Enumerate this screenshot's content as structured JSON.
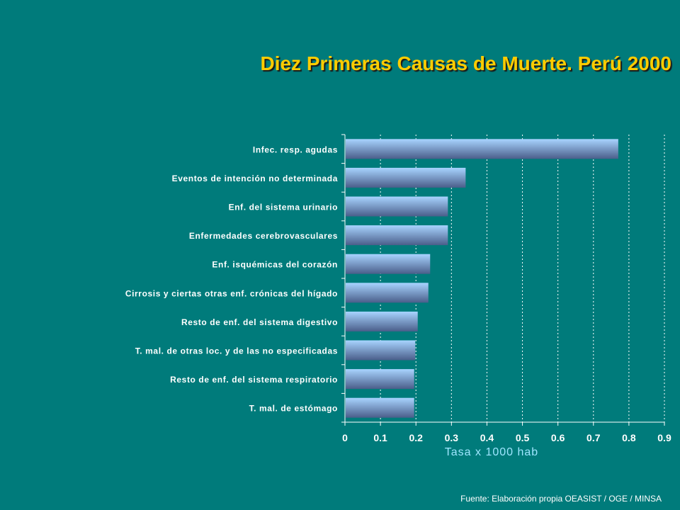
{
  "slide": {
    "title": "Diez Primeras Causas de Muerte. Perú 2000",
    "source": "Fuente: Elaboración propia OEASIST / OGE / MINSA"
  },
  "colors": {
    "background": "#007B7B",
    "title": "#FFCC00",
    "bar_top": "#A8D4FF",
    "bar_bottom": "#4A5E8A",
    "axis_label": "#9FE6FF"
  },
  "chart_data": {
    "type": "bar",
    "orientation": "horizontal",
    "categories": [
      "Infec. resp. agudas",
      "Eventos de intención no determinada",
      "Enf. del sistema urinario",
      "Enfermedades cerebrovasculares",
      "Enf. isquémicas del corazón",
      "Cirrosis y ciertas otras enf. crónicas del hígado",
      "Resto de enf. del sistema digestivo",
      "T. mal. de otras loc. y de las no especificadas",
      "Resto de enf. del sistema respiratorio",
      "T. mal. de estómago"
    ],
    "values": [
      0.77,
      0.34,
      0.29,
      0.29,
      0.24,
      0.235,
      0.205,
      0.198,
      0.195,
      0.195
    ],
    "xlabel": "Tasa x 1000 hab",
    "ylabel": "",
    "xlim": [
      0,
      0.9
    ],
    "xticks": [
      "0",
      "0.1",
      "0.2",
      "0.3",
      "0.4",
      "0.5",
      "0.6",
      "0.7",
      "0.8",
      "0.9"
    ],
    "grid": "vertical dashed"
  }
}
